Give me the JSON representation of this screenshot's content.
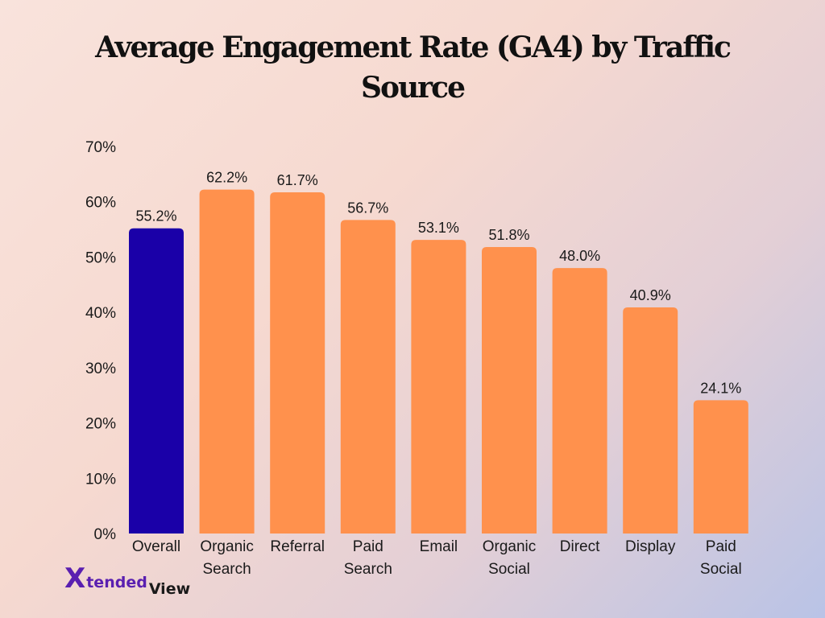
{
  "chart_data": {
    "type": "bar",
    "title": "Average Engagement Rate (GA4) by Traffic Source",
    "xlabel": "",
    "ylabel": "",
    "ylim": [
      0,
      70
    ],
    "yticks": [
      "0%",
      "10%",
      "20%",
      "30%",
      "40%",
      "50%",
      "60%",
      "70%"
    ],
    "categories": [
      "Overall",
      "Organic\nSearch",
      "Referral",
      "Paid\nSearch",
      "Email",
      "Organic\nSocial",
      "Direct",
      "Display",
      "Paid\nSocial"
    ],
    "values": [
      55.2,
      62.2,
      61.7,
      56.7,
      53.1,
      51.8,
      48.0,
      40.9,
      24.1
    ],
    "data_labels": [
      "55.2%",
      "62.2%",
      "61.7%",
      "56.7%",
      "53.1%",
      "51.8%",
      "48.0%",
      "40.9%",
      "24.1%"
    ],
    "bar_colors": [
      "#1a00a8",
      "#ff914d",
      "#ff914d",
      "#ff914d",
      "#ff914d",
      "#ff914d",
      "#ff914d",
      "#ff914d",
      "#ff914d"
    ],
    "grid": false,
    "legend": "none"
  },
  "logo": {
    "x": "X",
    "tended": "tended",
    "view": "View"
  }
}
